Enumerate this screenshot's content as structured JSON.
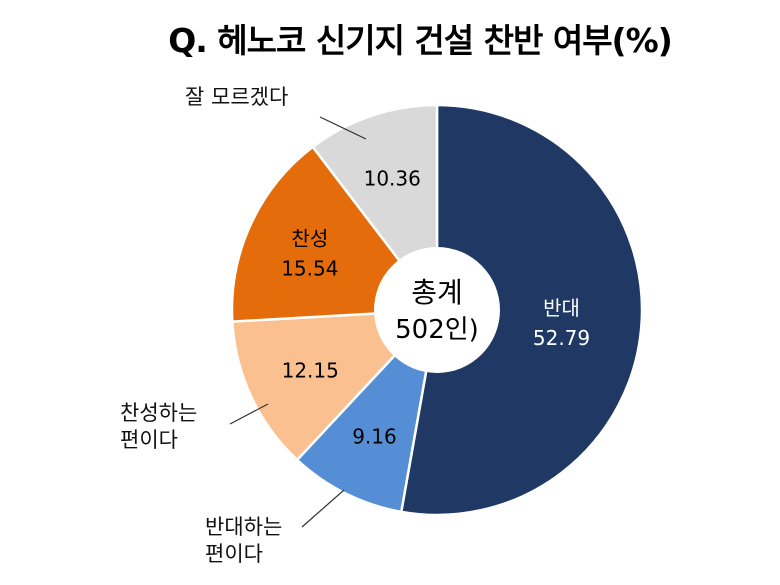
{
  "chart_data": {
    "type": "pie",
    "style": "donut",
    "title": "Q. 헤노코 신기지 건설 찬반 여부(%)",
    "center_label": [
      "총계",
      "502인)"
    ],
    "start_angle": "12 o'clock, clockwise",
    "slices": [
      {
        "name": "반대",
        "value": 52.79,
        "color": "#1F3864",
        "label_color": "#FFFFFF",
        "label_inside": true
      },
      {
        "name": "반대하는 편이다",
        "value": 9.16,
        "color": "#558ED5",
        "label_color": "#000000",
        "label_inside": false
      },
      {
        "name": "찬성하는 편이다",
        "value": 12.15,
        "color": "#FAC090",
        "label_color": "#000000",
        "label_inside": false
      },
      {
        "name": "찬성",
        "value": 15.54,
        "color": "#E46C0A",
        "label_color": "#000000",
        "label_inside": true
      },
      {
        "name": "잘 모르겠다",
        "value": 10.36,
        "color": "#D9D9D9",
        "label_color": "#000000",
        "label_inside": false
      }
    ],
    "external_labels": {
      "slice_2": [
        "반대하는",
        "편이다"
      ],
      "slice_3": [
        "찬성하는",
        "편이다"
      ],
      "slice_5": [
        "잘 모르겠다"
      ]
    }
  }
}
